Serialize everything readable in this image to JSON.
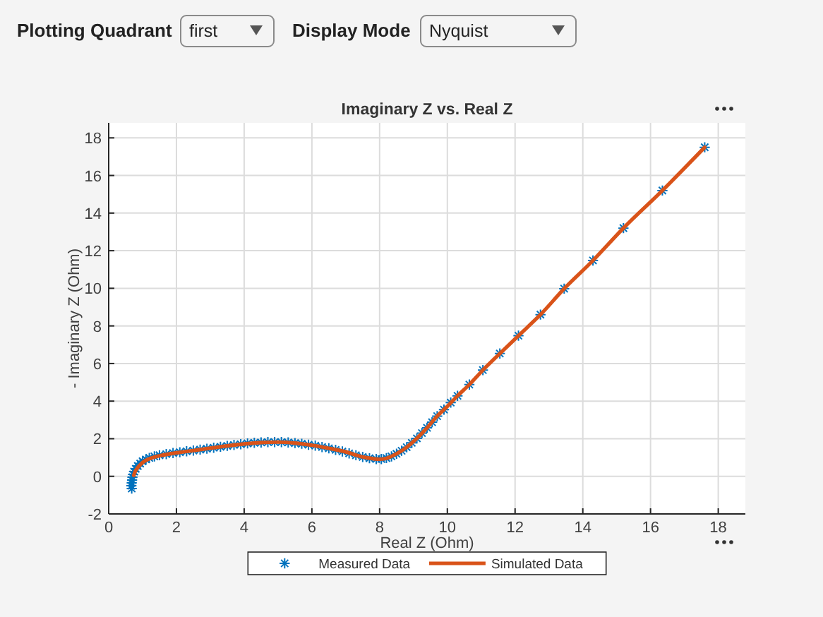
{
  "chart_data": {
    "type": "line",
    "title": "Imaginary Z vs. Real Z",
    "xlabel": "Real Z (Ohm)",
    "ylabel": "- Imaginary Z (Ohm)",
    "annotations": [
      "Plotting Quadrant",
      "first",
      "Display Mode",
      "Nyquist"
    ],
    "series": [
      {
        "name": "Measured Data",
        "type": "scatter",
        "color": "#0072bd",
        "marker": "cross",
        "x": [
          0.68,
          0.67,
          0.68,
          0.69,
          0.7,
          0.72,
          0.75,
          0.8,
          0.86,
          0.93,
          1.0,
          1.1,
          1.2,
          1.35,
          1.5,
          1.7,
          1.9,
          2.1,
          2.3,
          2.5,
          2.7,
          2.9,
          3.1,
          3.3,
          3.5,
          3.7,
          3.9,
          4.1,
          4.3,
          4.5,
          4.7,
          4.9,
          5.1,
          5.3,
          5.5,
          5.7,
          5.9,
          6.1,
          6.3,
          6.5,
          6.7,
          6.9,
          7.1,
          7.3,
          7.5,
          7.7,
          7.9,
          8.05,
          8.2,
          8.35,
          8.5,
          8.65,
          8.8,
          8.95,
          9.1,
          9.25,
          9.4,
          9.55,
          9.7,
          9.9,
          10.1,
          10.3,
          10.65,
          11.05,
          11.55,
          12.1,
          12.75,
          13.45,
          14.3,
          15.2,
          16.35,
          17.6
        ],
        "values": [
          -0.65,
          -0.5,
          -0.35,
          -0.2,
          -0.05,
          0.1,
          0.25,
          0.4,
          0.55,
          0.68,
          0.8,
          0.9,
          0.98,
          1.06,
          1.12,
          1.18,
          1.24,
          1.28,
          1.33,
          1.37,
          1.42,
          1.47,
          1.52,
          1.57,
          1.62,
          1.67,
          1.71,
          1.75,
          1.78,
          1.8,
          1.82,
          1.82,
          1.82,
          1.8,
          1.77,
          1.73,
          1.68,
          1.63,
          1.56,
          1.49,
          1.41,
          1.32,
          1.22,
          1.12,
          1.03,
          0.96,
          0.92,
          0.92,
          0.97,
          1.06,
          1.2,
          1.36,
          1.55,
          1.78,
          2.02,
          2.3,
          2.58,
          2.88,
          3.2,
          3.55,
          3.92,
          4.28,
          4.88,
          5.65,
          6.53,
          7.48,
          8.6,
          9.98,
          11.48,
          13.2,
          15.2,
          17.5
        ]
      },
      {
        "name": "Simulated Data",
        "color": "#d95319",
        "line_style": "solid",
        "x": [
          0.74,
          0.78,
          0.85,
          0.95,
          1.1,
          1.3,
          1.6,
          2.0,
          2.5,
          3.0,
          3.5,
          4.0,
          4.5,
          5.0,
          5.5,
          6.0,
          6.5,
          7.0,
          7.5,
          7.8,
          8.0,
          8.2,
          8.5,
          8.8,
          9.1,
          9.4,
          9.7,
          10.0,
          10.3,
          10.65,
          11.05,
          11.55,
          12.1,
          12.75,
          13.45,
          14.3,
          15.2,
          16.35,
          17.6
        ],
        "values": [
          0.05,
          0.25,
          0.45,
          0.65,
          0.85,
          1.0,
          1.13,
          1.25,
          1.37,
          1.5,
          1.62,
          1.72,
          1.8,
          1.82,
          1.77,
          1.65,
          1.49,
          1.3,
          1.03,
          0.94,
          0.91,
          0.96,
          1.2,
          1.55,
          2.02,
          2.58,
          3.2,
          3.72,
          4.28,
          4.88,
          5.65,
          6.53,
          7.48,
          8.6,
          9.98,
          11.48,
          13.2,
          15.2,
          17.5
        ]
      }
    ],
    "xlim": [
      0,
      18.8
    ],
    "ylim": [
      -2,
      18.8
    ],
    "xticks": [
      0,
      2,
      4,
      6,
      8,
      10,
      12,
      14,
      16,
      18
    ],
    "yticks": [
      -2,
      0,
      2,
      4,
      6,
      8,
      10,
      12,
      14,
      16,
      18
    ],
    "grid": true,
    "legend": "bottom"
  }
}
